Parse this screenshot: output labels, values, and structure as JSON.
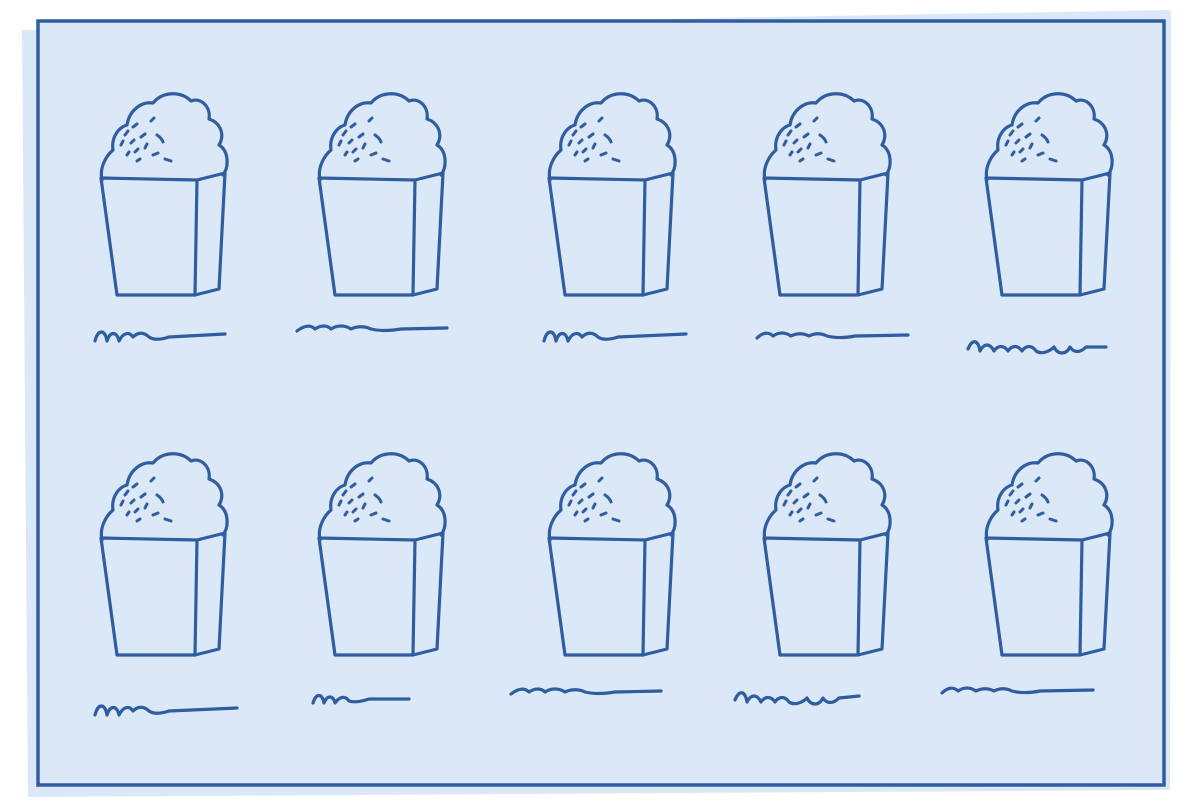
{
  "colors": {
    "background": "#ffffff",
    "card_fill": "#dbe8f7",
    "ink": "#2f5d9f"
  },
  "icon": "ice-cream-carton-icon",
  "grid": {
    "rows": 2,
    "columns": 5,
    "label": "scribble-placeholder-label"
  }
}
